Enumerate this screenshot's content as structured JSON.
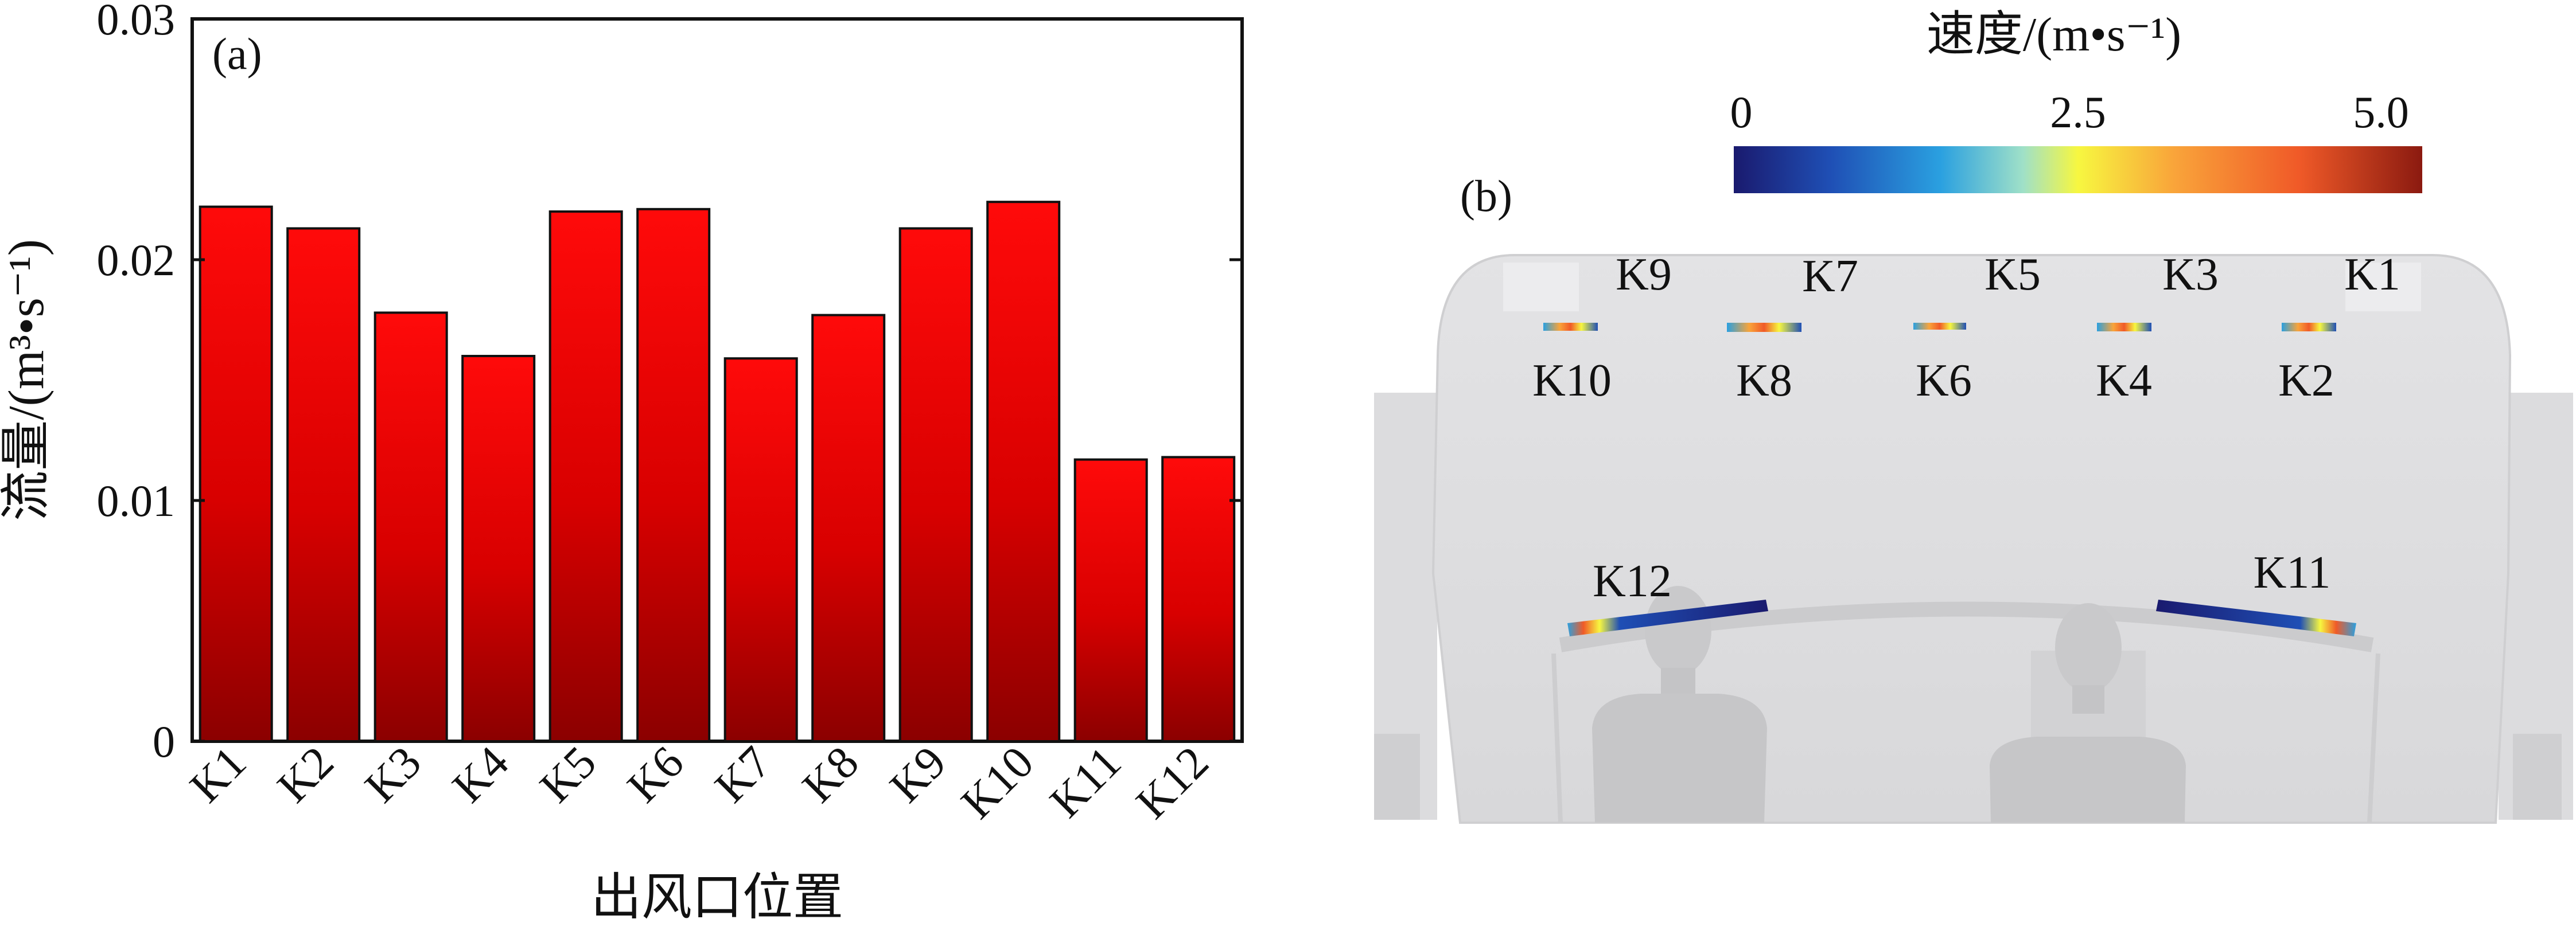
{
  "chart_data": [
    {
      "panel": "(a)",
      "type": "bar",
      "categories": [
        "K1",
        "K2",
        "K3",
        "K4",
        "K5",
        "K6",
        "K7",
        "K8",
        "K9",
        "K10",
        "K11",
        "K12"
      ],
      "values": [
        0.0222,
        0.0213,
        0.0178,
        0.016,
        0.022,
        0.0221,
        0.0159,
        0.0177,
        0.0213,
        0.0224,
        0.0117,
        0.0118
      ],
      "xlabel": "出风口位置",
      "ylabel": "流量/(m³•s⁻¹)",
      "ylim": [
        0,
        0.03
      ],
      "yticks": [
        "0",
        "0.01",
        "0.02",
        "0.03"
      ],
      "bar_color_top": "#ff0a0a",
      "bar_color_bottom": "#8b0000",
      "grid": false,
      "legend": "none"
    },
    {
      "panel": "(b)",
      "type": "contour",
      "colorbar": {
        "title": "速度/(m•s⁻¹)",
        "ticks": [
          "0",
          "2.5",
          "5.0"
        ],
        "range": [
          0,
          5.0
        ],
        "colors": [
          "#1a1a6e",
          "#1f4fb5",
          "#2aa0e0",
          "#9fe0c8",
          "#f7f740",
          "#f9a43a",
          "#f05a28",
          "#8b1a10"
        ]
      },
      "outlets": [
        "K1",
        "K2",
        "K3",
        "K4",
        "K5",
        "K6",
        "K7",
        "K8",
        "K9",
        "K10",
        "K11",
        "K12"
      ]
    }
  ]
}
